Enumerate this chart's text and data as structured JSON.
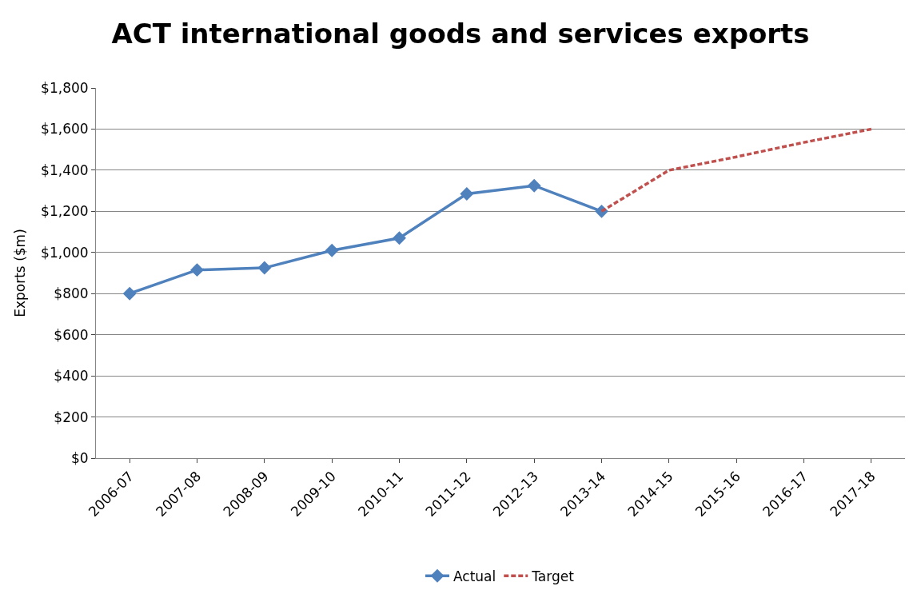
{
  "chart_data": {
    "type": "line",
    "title": "ACT international goods and services exports",
    "ylabel": "Exports ($m)",
    "categories": [
      "2006-07",
      "2007-08",
      "2008-09",
      "2009-10",
      "2010-11",
      "2011-12",
      "2012-13",
      "2013-14",
      "2014-15",
      "2015-16",
      "2016-17",
      "2017-18"
    ],
    "series": [
      {
        "name": "Actual",
        "color": "#4f81bd",
        "marker": "diamond",
        "line_style": "solid",
        "values": [
          800,
          915,
          925,
          1010,
          1070,
          1285,
          1325,
          1200,
          null,
          null,
          null,
          null
        ]
      },
      {
        "name": "Target",
        "color": "#c0504d",
        "marker": "none",
        "line_style": "dashed",
        "values": [
          null,
          null,
          null,
          null,
          null,
          null,
          null,
          1200,
          1400,
          1465,
          1535,
          1600
        ]
      }
    ],
    "ylim": [
      0,
      1800
    ],
    "yticks": [
      {
        "value": 0,
        "label": "$0"
      },
      {
        "value": 200,
        "label": "$200"
      },
      {
        "value": 400,
        "label": "$400"
      },
      {
        "value": 600,
        "label": "$600"
      },
      {
        "value": 800,
        "label": "$800"
      },
      {
        "value": 1000,
        "label": "$1,000"
      },
      {
        "value": 1200,
        "label": "$1,200"
      },
      {
        "value": 1400,
        "label": "$1,400"
      },
      {
        "value": 1600,
        "label": "$1,600"
      },
      {
        "value": 1800,
        "label": "$1,800"
      }
    ],
    "grid": "y",
    "legend": "bottom"
  }
}
